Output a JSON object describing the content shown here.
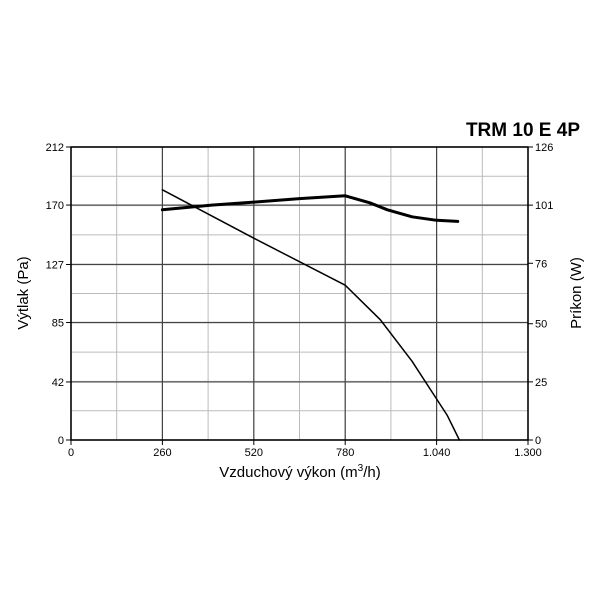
{
  "chart_data": {
    "type": "line",
    "title": "TRM 10 E 4P",
    "xlabel_main": "Vzduchový výkon (m",
    "xlabel_sup": "3",
    "xlabel_end": "/h)",
    "ylabel_left": "Výtlak (Pa)",
    "ylabel_right": "Príkon (W)",
    "xlim": [
      0,
      1300
    ],
    "ylim_left": [
      0,
      212
    ],
    "ylim_right": [
      0,
      126
    ],
    "x_ticks": [
      0,
      260,
      520,
      780,
      1040,
      1300
    ],
    "x_tick_labels": [
      "0",
      "260",
      "520",
      "780",
      "1.040",
      "1.300"
    ],
    "y_left_ticks": [
      0,
      42,
      85,
      127,
      170,
      212
    ],
    "y_left_tick_labels": [
      "0",
      "42",
      "85",
      "127",
      "170",
      "212"
    ],
    "y_right_ticks": [
      0,
      25,
      50,
      76,
      101,
      126
    ],
    "y_right_tick_labels": [
      "0",
      "25",
      "50",
      "76",
      "101",
      "126"
    ],
    "grid": true,
    "series": [
      {
        "axis": "left",
        "stroke_width": 1.5,
        "points": [
          [
            260,
            181
          ],
          [
            520,
            146
          ],
          [
            780,
            112
          ],
          [
            880,
            87
          ],
          [
            970,
            57
          ],
          [
            1070,
            18
          ],
          [
            1105,
            0
          ]
        ]
      },
      {
        "axis": "right",
        "stroke_width": 3,
        "points": [
          [
            260,
            99
          ],
          [
            400,
            101
          ],
          [
            520,
            102.3
          ],
          [
            650,
            103.8
          ],
          [
            780,
            105
          ],
          [
            850,
            102
          ],
          [
            900,
            99
          ],
          [
            970,
            96
          ],
          [
            1040,
            94.5
          ],
          [
            1100,
            94
          ]
        ]
      }
    ]
  }
}
